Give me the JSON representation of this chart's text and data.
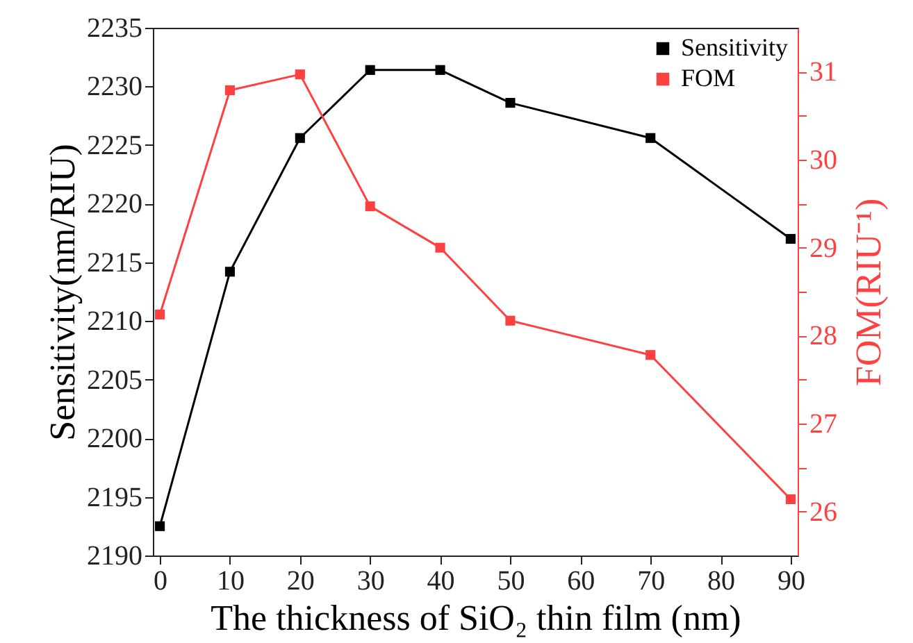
{
  "chart_data": {
    "type": "line",
    "xlabel": "The thickness of SiO₂ thin film (nm)",
    "ylabel": "Sensitivity(nm/RIU)",
    "y2label": "FOM(RIU⁻¹)",
    "x": [
      0,
      10,
      20,
      30,
      40,
      50,
      70,
      90
    ],
    "series": [
      {
        "name": "Sensitivity",
        "color": "#000000",
        "values": [
          2192.5,
          2214.2,
          2225.6,
          2231.4,
          2231.4,
          2228.6,
          2225.6,
          2217.0
        ]
      },
      {
        "name": "FOM",
        "color": "#ff4040",
        "axis": "y2",
        "values": [
          28.24,
          30.79,
          30.97,
          29.47,
          29.0,
          28.17,
          27.78,
          26.14
        ]
      }
    ],
    "xlim": [
      -1,
      91
    ],
    "xticks": [
      0,
      10,
      20,
      30,
      40,
      50,
      60,
      70,
      80,
      90
    ],
    "ylim": [
      2190,
      2235
    ],
    "yticks": [
      2190,
      2195,
      2200,
      2205,
      2210,
      2215,
      2220,
      2225,
      2230,
      2235
    ],
    "y2lim": [
      25.5,
      31.5
    ],
    "y2ticks": [
      26,
      {
        "value": 26.5,
        "label": null
      },
      27,
      {
        "value": 27.5,
        "label": null
      },
      28,
      {
        "value": 28.5,
        "label": null
      },
      29,
      {
        "value": 29.5,
        "label": null
      },
      30,
      {
        "value": 30.5,
        "label": null
      },
      31
    ],
    "grid": false,
    "legend": "top right",
    "marker": "square",
    "line_style": "solid"
  }
}
